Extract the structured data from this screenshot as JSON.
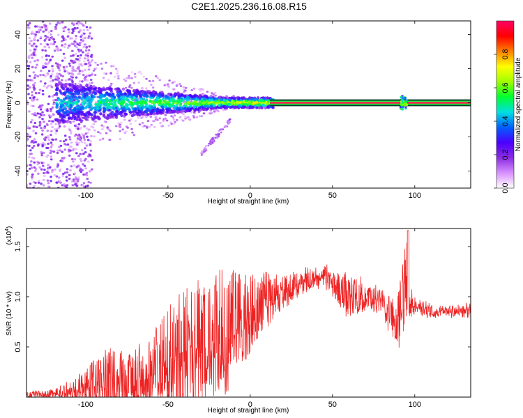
{
  "title": "C2E1.2025.236.16.08.R15",
  "chart_data": [
    {
      "type": "heatmap",
      "xlabel": "Height of straight line (km)",
      "ylabel": "Frequency (Hz)",
      "xlim": [
        -136,
        134
      ],
      "ylim": [
        -50,
        48
      ],
      "xticks": [
        -100,
        -50,
        0,
        50,
        100
      ],
      "yticks": [
        -40,
        -20,
        0,
        20,
        40
      ],
      "colorbar": {
        "label": "Normalized spectral amplitude",
        "range": [
          0,
          1
        ],
        "ticks": [
          "0.0",
          "0.2",
          "0.4",
          "0.6",
          "0.8"
        ],
        "tick_values": [
          0.0,
          0.2,
          0.4,
          0.6,
          0.8
        ],
        "colors": [
          "#ffffff",
          "#d890ff",
          "#8a2be2",
          "#4b00ff",
          "#0060ff",
          "#00e0e0",
          "#00ff30",
          "#a0ff00",
          "#ffff00",
          "#ff8000",
          "#ff0000",
          "#ff0066"
        ]
      },
      "features": {
        "band_center_hz": 0,
        "band_half_width_hz": 2,
        "steady_band_start_km": 12,
        "steady_band_end_km": 134,
        "isolated_blob_km": 93,
        "curved_tail_km": [
          -30,
          -12
        ],
        "curved_tail_hz": [
          -30,
          -10
        ]
      }
    },
    {
      "type": "line",
      "xlabel": "Height of straight line (km)",
      "ylabel": "SNR (10 * v/v)",
      "scale_label": "(x10",
      "scale_exp": "4",
      "xlim": [
        -136,
        134
      ],
      "ylim": [
        0,
        1.68
      ],
      "xticks": [
        -100,
        -50,
        0,
        50,
        100
      ],
      "yticks": [
        0.5,
        1.0,
        1.5
      ],
      "ytick_labels": [
        "0.5",
        "1.0",
        "1.5"
      ],
      "color": "#ee2222",
      "envelope": {
        "x": [
          -136,
          -120,
          -105,
          -95,
          -85,
          -75,
          -62,
          -55,
          -45,
          -35,
          -25,
          -15,
          -5,
          0,
          10,
          20,
          30,
          40,
          45,
          50,
          55,
          60,
          70,
          80,
          88,
          92,
          95,
          97,
          100,
          110,
          120,
          134
        ],
        "base": [
          0.02,
          0.03,
          0.06,
          0.1,
          0.13,
          0.12,
          0.2,
          0.3,
          0.3,
          0.42,
          0.5,
          0.58,
          0.7,
          0.8,
          0.93,
          1.03,
          1.12,
          1.18,
          1.2,
          1.13,
          1.05,
          0.95,
          1.0,
          0.95,
          0.7,
          0.85,
          1.15,
          0.95,
          0.9,
          0.85,
          0.85,
          0.86
        ],
        "spike": [
          0.0,
          0.02,
          0.15,
          0.3,
          0.35,
          0.3,
          0.4,
          0.5,
          0.7,
          0.75,
          0.7,
          0.7,
          0.55,
          0.45,
          0.3,
          0.2,
          0.12,
          0.12,
          0.12,
          0.15,
          0.2,
          0.25,
          0.15,
          0.1,
          0.25,
          0.4,
          0.5,
          0.2,
          0.06,
          0.05,
          0.05,
          0.05
        ]
      }
    }
  ]
}
